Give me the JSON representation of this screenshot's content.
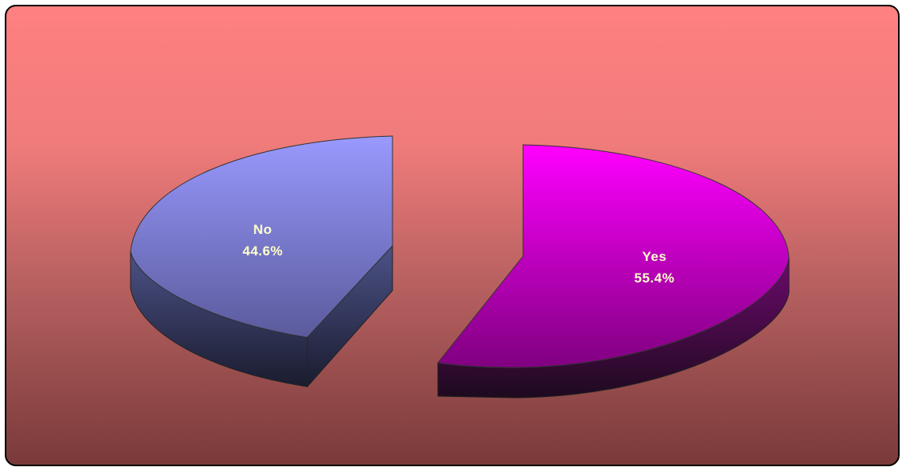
{
  "chart_data": {
    "type": "pie",
    "title": "",
    "categories": [
      "No",
      "Yes"
    ],
    "values": [
      44.6,
      55.4
    ],
    "data_labels": [
      "44.6%",
      "55.4%"
    ],
    "exploded": true,
    "style_3d": true,
    "colors": {
      "No": {
        "top": "#9999ff",
        "side": "#4a4f85"
      },
      "Yes": {
        "top": "#ff00ff",
        "side": "#7a0a7a"
      }
    },
    "background": {
      "top": "#ff8080",
      "bottom": "#7a3a3a"
    }
  }
}
